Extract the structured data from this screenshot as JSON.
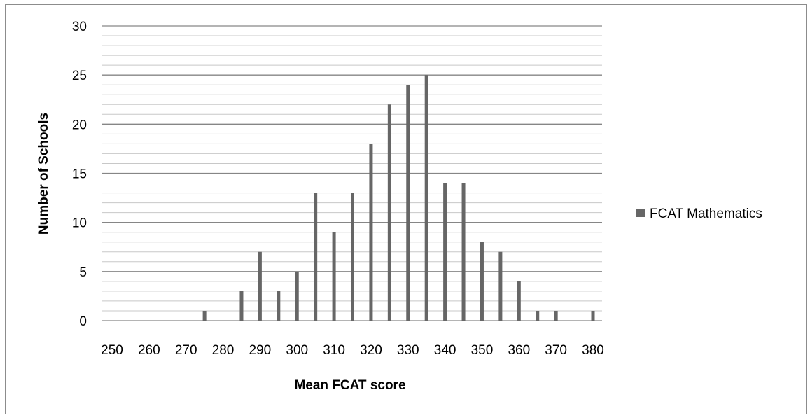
{
  "chart_data": {
    "type": "bar",
    "title": "",
    "xlabel": "Mean FCAT score",
    "ylabel": "Number of Schools",
    "x_tick_labels": [
      "250",
      "260",
      "270",
      "280",
      "290",
      "300",
      "310",
      "320",
      "330",
      "340",
      "350",
      "360",
      "370",
      "380"
    ],
    "y_tick_labels": [
      "0",
      "5",
      "10",
      "15",
      "20",
      "25",
      "30"
    ],
    "ylim": [
      0,
      30
    ],
    "xlim": [
      250,
      380
    ],
    "grid": true,
    "legend_position": "right",
    "series": [
      {
        "name": "FCAT Mathematics",
        "color": "#666666",
        "points": [
          {
            "x": 275,
            "y": 1
          },
          {
            "x": 285,
            "y": 3
          },
          {
            "x": 290,
            "y": 7
          },
          {
            "x": 295,
            "y": 3
          },
          {
            "x": 300,
            "y": 5
          },
          {
            "x": 305,
            "y": 13
          },
          {
            "x": 310,
            "y": 9
          },
          {
            "x": 315,
            "y": 13
          },
          {
            "x": 320,
            "y": 18
          },
          {
            "x": 325,
            "y": 22
          },
          {
            "x": 330,
            "y": 24
          },
          {
            "x": 335,
            "y": 25
          },
          {
            "x": 340,
            "y": 14
          },
          {
            "x": 345,
            "y": 14
          },
          {
            "x": 350,
            "y": 8
          },
          {
            "x": 355,
            "y": 7
          },
          {
            "x": 360,
            "y": 4
          },
          {
            "x": 365,
            "y": 1
          },
          {
            "x": 370,
            "y": 1
          },
          {
            "x": 380,
            "y": 1
          }
        ]
      }
    ]
  }
}
